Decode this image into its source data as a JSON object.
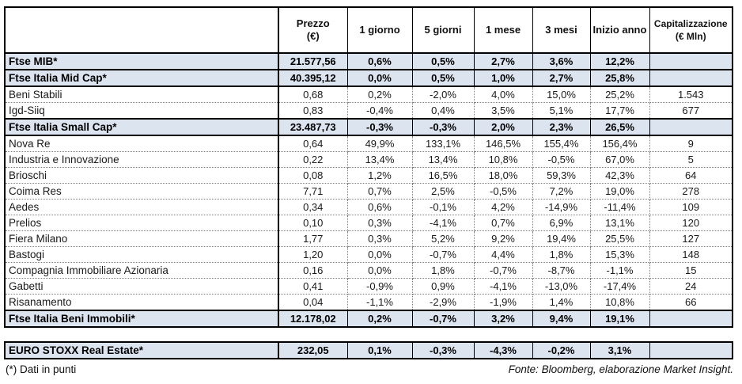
{
  "colors": {
    "index_row_bg": "#dce4f0",
    "border": "#000000",
    "dotted_grid": "#7f7f7f",
    "background": "#ffffff"
  },
  "table": {
    "columns": [
      {
        "label": "",
        "sub": ""
      },
      {
        "label": "Prezzo",
        "sub": "(€)"
      },
      {
        "label": "1 giorno",
        "sub": ""
      },
      {
        "label": "5 giorni",
        "sub": ""
      },
      {
        "label": "1 mese",
        "sub": ""
      },
      {
        "label": "3 mesi",
        "sub": ""
      },
      {
        "label": "Inizio anno",
        "sub": ""
      },
      {
        "label": "Capitalizzazione",
        "sub": "(€ Mln)"
      }
    ],
    "column_keys": [
      "prezzo",
      "1-giorno",
      "5-giorni",
      "1-mese",
      "3-mesi",
      "inizio-anno",
      "capitalizzazione"
    ],
    "rows": [
      {
        "type": "index",
        "name": "Ftse MIB*",
        "cells": [
          "21.577,56",
          "0,6%",
          "0,5%",
          "2,7%",
          "3,6%",
          "12,2%",
          ""
        ]
      },
      {
        "type": "index",
        "name": "Ftse Italia Mid Cap*",
        "cells": [
          "40.395,12",
          "0,0%",
          "0,5%",
          "1,0%",
          "2,7%",
          "25,8%",
          ""
        ]
      },
      {
        "type": "company",
        "name": "Beni Stabili",
        "cells": [
          "0,68",
          "0,2%",
          "-2,0%",
          "4,0%",
          "15,0%",
          "25,2%",
          "1.543"
        ]
      },
      {
        "type": "company",
        "name": "Igd-Siiq",
        "cells": [
          "0,83",
          "-0,4%",
          "0,4%",
          "3,5%",
          "5,1%",
          "17,7%",
          "677"
        ]
      },
      {
        "type": "index",
        "name": "Ftse Italia Small Cap*",
        "cells": [
          "23.487,73",
          "-0,3%",
          "-0,3%",
          "2,0%",
          "2,3%",
          "26,5%",
          ""
        ]
      },
      {
        "type": "company",
        "name": "Nova Re",
        "cells": [
          "0,64",
          "49,9%",
          "133,1%",
          "146,5%",
          "155,4%",
          "156,4%",
          "9"
        ]
      },
      {
        "type": "company",
        "name": "Industria e Innovazione",
        "cells": [
          "0,22",
          "13,4%",
          "13,4%",
          "10,8%",
          "-0,5%",
          "67,0%",
          "5"
        ]
      },
      {
        "type": "company",
        "name": "Brioschi",
        "cells": [
          "0,08",
          "1,2%",
          "16,5%",
          "18,0%",
          "59,3%",
          "42,3%",
          "64"
        ]
      },
      {
        "type": "company",
        "name": "Coima Res",
        "cells": [
          "7,71",
          "0,7%",
          "2,5%",
          "-0,5%",
          "7,2%",
          "19,0%",
          "278"
        ]
      },
      {
        "type": "company",
        "name": "Aedes",
        "cells": [
          "0,34",
          "0,6%",
          "-0,1%",
          "4,2%",
          "-14,9%",
          "-11,4%",
          "109"
        ]
      },
      {
        "type": "company",
        "name": "Prelios",
        "cells": [
          "0,10",
          "0,3%",
          "-4,1%",
          "0,7%",
          "6,9%",
          "13,1%",
          "120"
        ]
      },
      {
        "type": "company",
        "name": "Fiera Milano",
        "cells": [
          "1,77",
          "0,3%",
          "5,2%",
          "9,2%",
          "19,4%",
          "25,5%",
          "127"
        ]
      },
      {
        "type": "company",
        "name": "Bastogi",
        "cells": [
          "1,20",
          "0,0%",
          "-0,7%",
          "4,4%",
          "1,8%",
          "15,3%",
          "148"
        ]
      },
      {
        "type": "company",
        "name": "Compagnia Immobiliare Azionaria",
        "cells": [
          "0,16",
          "0,0%",
          "1,8%",
          "-0,7%",
          "-8,7%",
          "-1,1%",
          "15"
        ]
      },
      {
        "type": "company",
        "name": "Gabetti",
        "cells": [
          "0,41",
          "-0,9%",
          "0,9%",
          "-4,1%",
          "-13,0%",
          "-17,4%",
          "24"
        ]
      },
      {
        "type": "company",
        "name": "Risanamento",
        "cells": [
          "0,04",
          "-1,1%",
          "-2,9%",
          "-1,9%",
          "1,4%",
          "10,8%",
          "66"
        ]
      },
      {
        "type": "index",
        "name": "Ftse Italia Beni Immobili*",
        "cells": [
          "12.178,02",
          "0,2%",
          "-0,7%",
          "3,2%",
          "9,4%",
          "19,1%",
          ""
        ]
      }
    ]
  },
  "euro_table": {
    "rows": [
      {
        "type": "index",
        "name": "EURO STOXX Real Estate*",
        "cells": [
          "232,05",
          "0,1%",
          "-0,3%",
          "-4,3%",
          "-0,2%",
          "3,1%",
          ""
        ]
      }
    ]
  },
  "footer": {
    "left": "(*) Dati in punti",
    "right": "Fonte: Bloomberg, elaborazione Market Insight."
  },
  "chart_data": {
    "type": "table",
    "title": "",
    "columns": [
      "",
      "Prezzo (€)",
      "1 giorno",
      "5 giorni",
      "1 mese",
      "3 mesi",
      "Inizio anno",
      "Capitalizzazione (€ Mln)"
    ],
    "rows": [
      [
        "Ftse MIB*",
        "21.577,56",
        "0,6%",
        "0,5%",
        "2,7%",
        "3,6%",
        "12,2%",
        ""
      ],
      [
        "Ftse Italia Mid Cap*",
        "40.395,12",
        "0,0%",
        "0,5%",
        "1,0%",
        "2,7%",
        "25,8%",
        ""
      ],
      [
        "Beni Stabili",
        "0,68",
        "0,2%",
        "-2,0%",
        "4,0%",
        "15,0%",
        "25,2%",
        "1.543"
      ],
      [
        "Igd-Siiq",
        "0,83",
        "-0,4%",
        "0,4%",
        "3,5%",
        "5,1%",
        "17,7%",
        "677"
      ],
      [
        "Ftse Italia Small Cap*",
        "23.487,73",
        "-0,3%",
        "-0,3%",
        "2,0%",
        "2,3%",
        "26,5%",
        ""
      ],
      [
        "Nova Re",
        "0,64",
        "49,9%",
        "133,1%",
        "146,5%",
        "155,4%",
        "156,4%",
        "9"
      ],
      [
        "Industria e Innovazione",
        "0,22",
        "13,4%",
        "13,4%",
        "10,8%",
        "-0,5%",
        "67,0%",
        "5"
      ],
      [
        "Brioschi",
        "0,08",
        "1,2%",
        "16,5%",
        "18,0%",
        "59,3%",
        "42,3%",
        "64"
      ],
      [
        "Coima Res",
        "7,71",
        "0,7%",
        "2,5%",
        "-0,5%",
        "7,2%",
        "19,0%",
        "278"
      ],
      [
        "Aedes",
        "0,34",
        "0,6%",
        "-0,1%",
        "4,2%",
        "-14,9%",
        "-11,4%",
        "109"
      ],
      [
        "Prelios",
        "0,10",
        "0,3%",
        "-4,1%",
        "0,7%",
        "6,9%",
        "13,1%",
        "120"
      ],
      [
        "Fiera Milano",
        "1,77",
        "0,3%",
        "5,2%",
        "9,2%",
        "19,4%",
        "25,5%",
        "127"
      ],
      [
        "Bastogi",
        "1,20",
        "0,0%",
        "-0,7%",
        "4,4%",
        "1,8%",
        "15,3%",
        "148"
      ],
      [
        "Compagnia Immobiliare Azionaria",
        "0,16",
        "0,0%",
        "1,8%",
        "-0,7%",
        "-8,7%",
        "-1,1%",
        "15"
      ],
      [
        "Gabetti",
        "0,41",
        "-0,9%",
        "0,9%",
        "-4,1%",
        "-13,0%",
        "-17,4%",
        "24"
      ],
      [
        "Risanamento",
        "0,04",
        "-1,1%",
        "-2,9%",
        "-1,9%",
        "1,4%",
        "10,8%",
        "66"
      ],
      [
        "Ftse Italia Beni Immobili*",
        "12.178,02",
        "0,2%",
        "-0,7%",
        "3,2%",
        "9,4%",
        "19,1%",
        ""
      ],
      [
        "EURO STOXX Real Estate*",
        "232,05",
        "0,1%",
        "-0,3%",
        "-4,3%",
        "-0,2%",
        "3,1%",
        ""
      ]
    ],
    "footnote": "(*) Dati in punti",
    "source": "Fonte: Bloomberg, elaborazione Market Insight."
  }
}
